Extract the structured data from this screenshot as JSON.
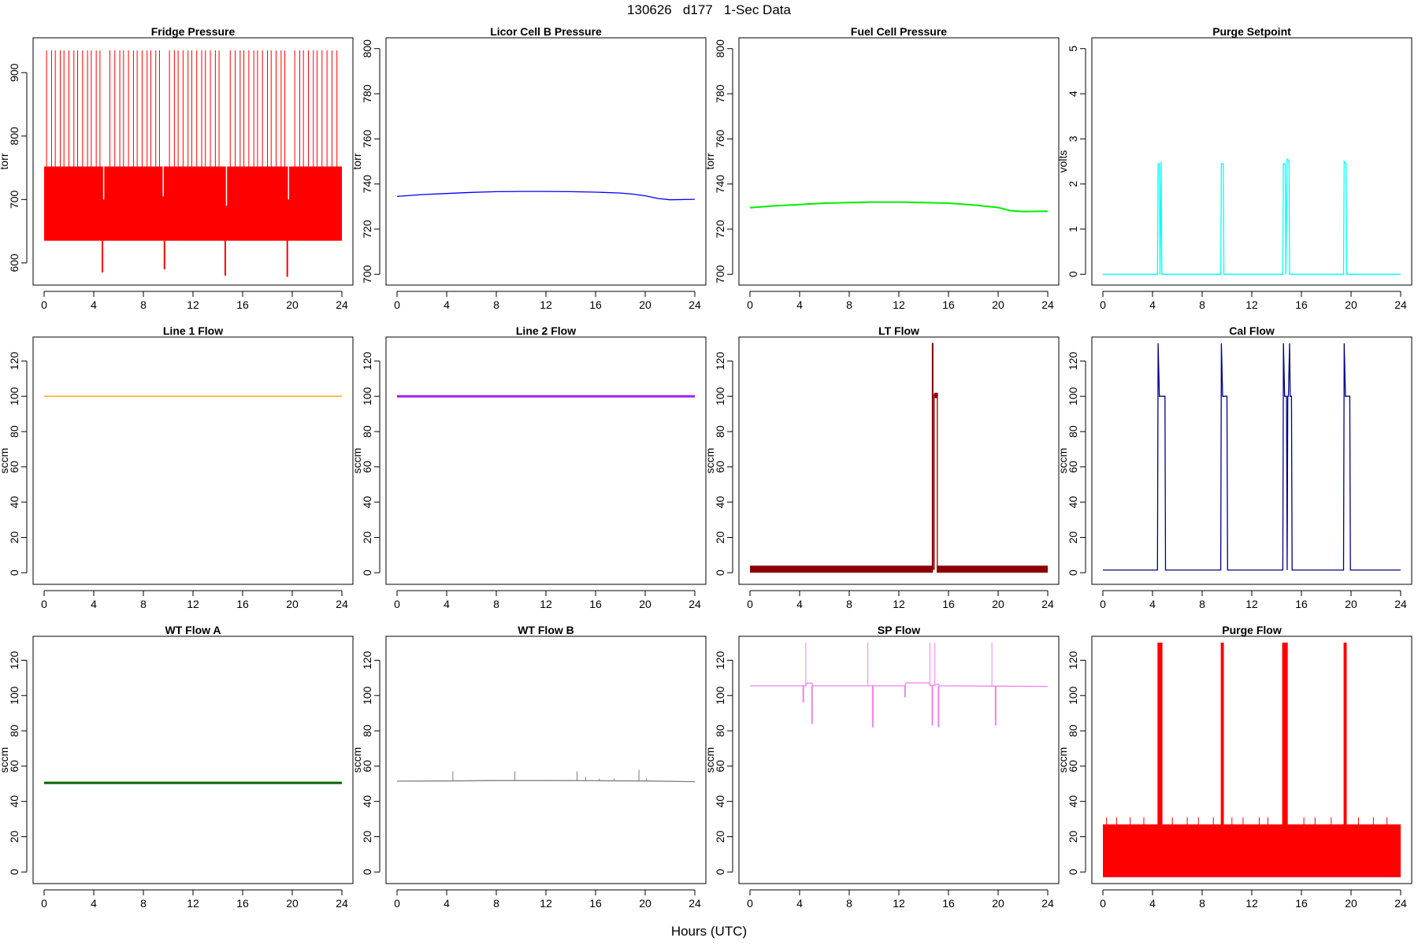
{
  "figure": {
    "title": "130626   d177   1-Sec Data",
    "xlabel": "Hours (UTC)"
  },
  "chart_data": [
    {
      "type": "line",
      "title": "Fridge Pressure",
      "ylabel": "torr",
      "color": "#ff0000",
      "xlim": [
        0,
        24
      ],
      "ylim": [
        575,
        945
      ],
      "xticks": [
        0,
        4,
        8,
        12,
        16,
        20,
        24
      ],
      "yticks": [
        600,
        700,
        800,
        900
      ],
      "render": "band",
      "band": {
        "low": 635,
        "high": 752
      },
      "spikes": {
        "x": [
          0.2,
          0.6,
          0.9,
          1.3,
          1.6,
          2.0,
          2.4,
          2.7,
          3.1,
          3.5,
          3.8,
          4.2,
          4.5,
          5.3,
          5.7,
          6.1,
          6.4,
          6.8,
          7.2,
          7.5,
          7.9,
          8.3,
          8.6,
          9.0,
          9.3,
          10.1,
          10.5,
          10.8,
          11.2,
          11.6,
          11.9,
          12.3,
          12.7,
          13.0,
          13.4,
          13.8,
          14.1,
          15.0,
          15.4,
          15.8,
          16.1,
          16.5,
          16.9,
          17.2,
          17.6,
          18.0,
          18.3,
          18.7,
          19.1,
          19.4,
          20.2,
          20.6,
          20.9,
          21.3,
          21.7,
          22.0,
          22.4,
          22.8,
          23.2,
          23.6
        ],
        "top": 935
      },
      "dips": [
        {
          "x": 4.7,
          "min": 585
        },
        {
          "x": 9.7,
          "min": 590
        },
        {
          "x": 14.6,
          "min": 580
        },
        {
          "x": 19.6,
          "min": 578
        }
      ],
      "notches": [
        {
          "x": 4.8,
          "to": 700
        },
        {
          "x": 9.6,
          "to": 705
        },
        {
          "x": 14.7,
          "to": 690
        },
        {
          "x": 19.7,
          "to": 700
        }
      ]
    },
    {
      "type": "line",
      "title": "Licor Cell B Pressure",
      "ylabel": "torr",
      "color": "#0000ff",
      "xlim": [
        0,
        24
      ],
      "ylim": [
        698,
        802
      ],
      "xticks": [
        0,
        4,
        8,
        12,
        16,
        20,
        24
      ],
      "yticks": [
        700,
        720,
        740,
        760,
        780,
        800
      ],
      "series": [
        {
          "x": [
            0,
            2,
            4,
            6,
            8,
            10,
            12,
            14,
            16,
            18,
            19,
            20,
            21,
            22,
            24
          ],
          "y": [
            734.5,
            735.3,
            735.8,
            736.3,
            736.6,
            736.7,
            736.7,
            736.6,
            736.4,
            736.0,
            735.5,
            734.8,
            733.6,
            733.0,
            733.2
          ]
        }
      ]
    },
    {
      "type": "line",
      "title": "Fuel Cell Pressure",
      "ylabel": "torr",
      "color": "#00ee00",
      "xlim": [
        0,
        24
      ],
      "ylim": [
        698,
        802
      ],
      "xticks": [
        0,
        4,
        8,
        12,
        16,
        20,
        24
      ],
      "yticks": [
        700,
        720,
        740,
        760,
        780,
        800
      ],
      "series": [
        {
          "x": [
            0,
            2,
            4,
            6,
            8,
            10,
            12,
            14,
            16,
            18,
            20,
            21,
            22,
            24
          ],
          "y": [
            729.5,
            730.3,
            730.9,
            731.5,
            731.8,
            732.0,
            732.0,
            731.8,
            731.5,
            730.7,
            729.6,
            728.2,
            727.8,
            727.9
          ]
        }
      ]
    },
    {
      "type": "line",
      "title": "Purge Setpoint",
      "ylabel": "volts",
      "color": "#00ffff",
      "xlim": [
        0,
        24
      ],
      "ylim": [
        -0.1,
        5.1
      ],
      "xticks": [
        0,
        4,
        8,
        12,
        16,
        20,
        24
      ],
      "yticks": [
        0,
        1,
        2,
        3,
        4,
        5
      ],
      "series": [
        {
          "x": [
            0,
            4.4,
            4.45,
            4.55,
            4.6,
            4.7,
            4.75,
            9.5,
            9.55,
            9.7,
            9.75,
            14.5,
            14.55,
            14.7,
            14.75,
            14.85,
            14.9,
            15.0,
            15.05,
            19.4,
            19.45,
            19.6,
            19.65,
            24
          ],
          "y": [
            0,
            0,
            2.45,
            2.45,
            0,
            2.5,
            0,
            0,
            2.45,
            2.45,
            0,
            0,
            2.45,
            2.45,
            0,
            2.55,
            2.55,
            2.5,
            0,
            0,
            2.5,
            2.45,
            0,
            0
          ]
        }
      ]
    },
    {
      "type": "line",
      "title": "Line 1 Flow",
      "ylabel": "sccm",
      "color": "#ffa500",
      "xlim": [
        0,
        24
      ],
      "ylim": [
        -3,
        130
      ],
      "xticks": [
        0,
        4,
        8,
        12,
        16,
        20,
        24
      ],
      "yticks": [
        0,
        20,
        40,
        60,
        80,
        100,
        120
      ],
      "series": [
        {
          "x": [
            0,
            24
          ],
          "y": [
            100,
            100
          ]
        }
      ]
    },
    {
      "type": "line",
      "title": "Line 2 Flow",
      "ylabel": "sccm",
      "color": "#a020f0",
      "xlim": [
        0,
        24
      ],
      "ylim": [
        -3,
        130
      ],
      "xticks": [
        0,
        4,
        8,
        12,
        16,
        20,
        24
      ],
      "yticks": [
        0,
        20,
        40,
        60,
        80,
        100,
        120
      ],
      "series": [
        {
          "x": [
            0,
            24
          ],
          "y": [
            100,
            100
          ]
        }
      ]
    },
    {
      "type": "line",
      "title": "LT Flow",
      "ylabel": "sccm",
      "color": "#8b0000",
      "xlim": [
        0,
        24
      ],
      "ylim": [
        -3,
        130
      ],
      "xticks": [
        0,
        4,
        8,
        12,
        16,
        20,
        24
      ],
      "yticks": [
        0,
        20,
        40,
        60,
        80,
        100,
        120
      ],
      "render": "blocks",
      "blocks": [
        {
          "x0": 0,
          "x1": 14.75,
          "y0": 0,
          "y1": 4
        },
        {
          "x0": 15.05,
          "x1": 24,
          "y0": 0,
          "y1": 4
        },
        {
          "x0": 14.85,
          "x1": 15.15,
          "y0": 99,
          "y1": 102
        }
      ],
      "series": [
        {
          "x": [
            14.7,
            14.7,
            14.75,
            14.75,
            14.85,
            14.85,
            15.1,
            15.1
          ],
          "y": [
            2,
            130,
            130,
            2,
            2,
            101,
            101,
            2
          ]
        }
      ]
    },
    {
      "type": "line",
      "title": "Cal Flow",
      "ylabel": "sccm",
      "color": "#00008b",
      "xlim": [
        0,
        24
      ],
      "ylim": [
        -3,
        130
      ],
      "xticks": [
        0,
        4,
        8,
        12,
        16,
        20,
        24
      ],
      "yticks": [
        0,
        20,
        40,
        60,
        80,
        100,
        120
      ],
      "series": [
        {
          "x": [
            0,
            4.4,
            4.45,
            4.55,
            4.6,
            5.0,
            5.05,
            9.5,
            9.55,
            9.65,
            9.7,
            10.0,
            10.05,
            14.5,
            14.55,
            14.65,
            14.7,
            14.8,
            14.85,
            14.9,
            14.95,
            15.05,
            15.1,
            15.2,
            15.25,
            19.4,
            19.45,
            19.55,
            19.6,
            19.9,
            19.95,
            24
          ],
          "y": [
            1.5,
            1.5,
            130,
            100,
            100,
            100,
            1.5,
            1.5,
            130,
            100,
            100,
            100,
            1.5,
            1.5,
            130,
            100,
            100,
            100,
            1.5,
            100,
            100,
            130,
            100,
            100,
            1.5,
            1.5,
            130,
            100,
            100,
            100,
            1.5,
            1.5
          ]
        }
      ]
    },
    {
      "type": "line",
      "title": "WT Flow A",
      "ylabel": "sccm",
      "color": "#006400",
      "xlim": [
        0,
        24
      ],
      "ylim": [
        -3,
        130
      ],
      "xticks": [
        0,
        4,
        8,
        12,
        16,
        20,
        24
      ],
      "yticks": [
        0,
        20,
        40,
        60,
        80,
        100,
        120
      ],
      "series": [
        {
          "x": [
            0,
            24
          ],
          "y": [
            50.5,
            50.5
          ]
        }
      ]
    },
    {
      "type": "line",
      "title": "WT Flow B",
      "ylabel": "sccm",
      "color": "#7f7f7f",
      "xlim": [
        0,
        24
      ],
      "ylim": [
        -3,
        130
      ],
      "xticks": [
        0,
        4,
        8,
        12,
        16,
        20,
        24
      ],
      "yticks": [
        0,
        20,
        40,
        60,
        80,
        100,
        120
      ],
      "series": [
        {
          "x": [
            0,
            4,
            8,
            12,
            16,
            20,
            24
          ],
          "y": [
            51.5,
            51.6,
            51.8,
            51.8,
            51.7,
            51.6,
            51.2
          ]
        }
      ],
      "spikes": {
        "x": [
          4.5,
          9.5,
          14.5,
          15.2,
          16.3,
          17.5,
          19.5,
          20.1
        ],
        "heights": [
          57,
          57,
          57,
          54,
          53,
          53,
          58,
          53
        ]
      }
    },
    {
      "type": "line",
      "title": "SP Flow",
      "ylabel": "sccm",
      "color": "#ee82ee",
      "xlim": [
        0,
        24
      ],
      "ylim": [
        -3,
        130
      ],
      "xticks": [
        0,
        4,
        8,
        12,
        16,
        20,
        24
      ],
      "yticks": [
        0,
        20,
        40,
        60,
        80,
        100,
        120
      ],
      "series": [
        {
          "x": [
            0,
            4.5,
            4.55,
            5.0,
            5.05,
            12.5,
            12.55,
            14.4,
            14.6,
            15.2,
            15.3,
            24
          ],
          "y": [
            105.5,
            105.5,
            107,
            107,
            105.5,
            105.5,
            107.2,
            107.2,
            105.5,
            106.5,
            105.5,
            105.2
          ]
        }
      ],
      "spikes": {
        "x": [
          4.5,
          9.5,
          14.5,
          14.9,
          19.5
        ],
        "heights": [
          130,
          130,
          130,
          130,
          130
        ]
      },
      "dips": [
        {
          "x": 4.3,
          "min": 96
        },
        {
          "x": 5.0,
          "min": 84
        },
        {
          "x": 9.9,
          "min": 82
        },
        {
          "x": 12.5,
          "min": 99
        },
        {
          "x": 14.7,
          "min": 83
        },
        {
          "x": 15.2,
          "min": 82
        },
        {
          "x": 19.8,
          "min": 83
        }
      ]
    },
    {
      "type": "line",
      "title": "Purge Flow",
      "ylabel": "sccm",
      "color": "#ff0000",
      "xlim": [
        0,
        24
      ],
      "ylim": [
        -3,
        130
      ],
      "xticks": [
        0,
        4,
        8,
        12,
        16,
        20,
        24
      ],
      "yticks": [
        0,
        20,
        40,
        60,
        80,
        100,
        120
      ],
      "render": "band",
      "band": {
        "low": -3,
        "high": 27
      },
      "spikes": {
        "x": [
          0.3,
          1.1,
          2.2,
          3.3,
          5.6,
          6.8,
          7.7,
          8.9,
          10.4,
          11.3,
          12.6,
          13.3,
          16.2,
          17.1,
          18.4,
          20.6,
          21.8,
          22.9
        ],
        "top": 31
      },
      "bursts": [
        {
          "x0": 4.4,
          "x1": 4.8,
          "top": 130
        },
        {
          "x0": 9.5,
          "x1": 9.75,
          "top": 130
        },
        {
          "x0": 14.45,
          "x1": 14.9,
          "top": 130
        },
        {
          "x0": 19.4,
          "x1": 19.65,
          "top": 130
        }
      ]
    }
  ]
}
